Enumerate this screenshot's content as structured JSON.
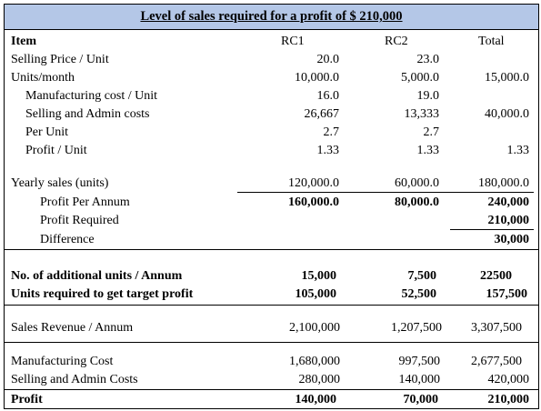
{
  "title": "Level of sales required for a profit of $ 210,000",
  "header": {
    "item": "Item",
    "rc1": "RC1",
    "rc2": "RC2",
    "total": "Total"
  },
  "rows": {
    "selling_price": {
      "label": "Selling Price / Unit",
      "rc1": "20.0",
      "rc2": "23.0",
      "total": ""
    },
    "units_month": {
      "label": "Units/month",
      "rc1": "10,000.0",
      "rc2": "5,000.0",
      "total": "15,000.0"
    },
    "mfg_cost_unit": {
      "label": "Manufacturing cost / Unit",
      "rc1": "16.0",
      "rc2": "19.0",
      "total": ""
    },
    "selling_admin": {
      "label": "Selling and Admin costs",
      "rc1": "26,667",
      "rc2": "13,333",
      "total": "40,000.0"
    },
    "per_unit": {
      "label": "Per Unit",
      "rc1": "2.7",
      "rc2": "2.7",
      "total": ""
    },
    "profit_unit": {
      "label": "Profit / Unit",
      "rc1": "1.33",
      "rc2": "1.33",
      "total": "1.33"
    },
    "yearly_sales": {
      "label": "Yearly sales (units)",
      "rc1": "120,000.0",
      "rc2": "60,000.0",
      "total": "180,000.0"
    },
    "profit_annum": {
      "label": "Profit Per Annum",
      "rc1": "160,000.0",
      "rc2": "80,000.0",
      "total": "240,000"
    },
    "profit_required": {
      "label": "Profit Required",
      "total": "210,000"
    },
    "difference": {
      "label": "Difference",
      "total": "30,000"
    },
    "additional_units": {
      "label": "No. of additional units / Annum",
      "rc1": "15,000",
      "rc2": "7,500",
      "total": "22500"
    },
    "units_target": {
      "label": "Units required to get target profit",
      "rc1": "105,000",
      "rc2": "52,500",
      "total": "157,500"
    },
    "sales_revenue": {
      "label": "Sales Revenue / Annum",
      "rc1": "2,100,000",
      "rc2": "1,207,500",
      "total": "3,307,500"
    },
    "mfg_cost": {
      "label": "Manufacturing Cost",
      "rc1": "1,680,000",
      "rc2": "997,500",
      "total": "2,677,500"
    },
    "sell_admin_costs": {
      "label": "Selling and Admin Costs",
      "rc1": "280,000",
      "rc2": "140,000",
      "total": "420,000"
    },
    "profit": {
      "label": "Profit",
      "rc1": "140,000",
      "rc2": "70,000",
      "total": "210,000"
    }
  },
  "colors": {
    "title_background": "#b4c7e7"
  }
}
